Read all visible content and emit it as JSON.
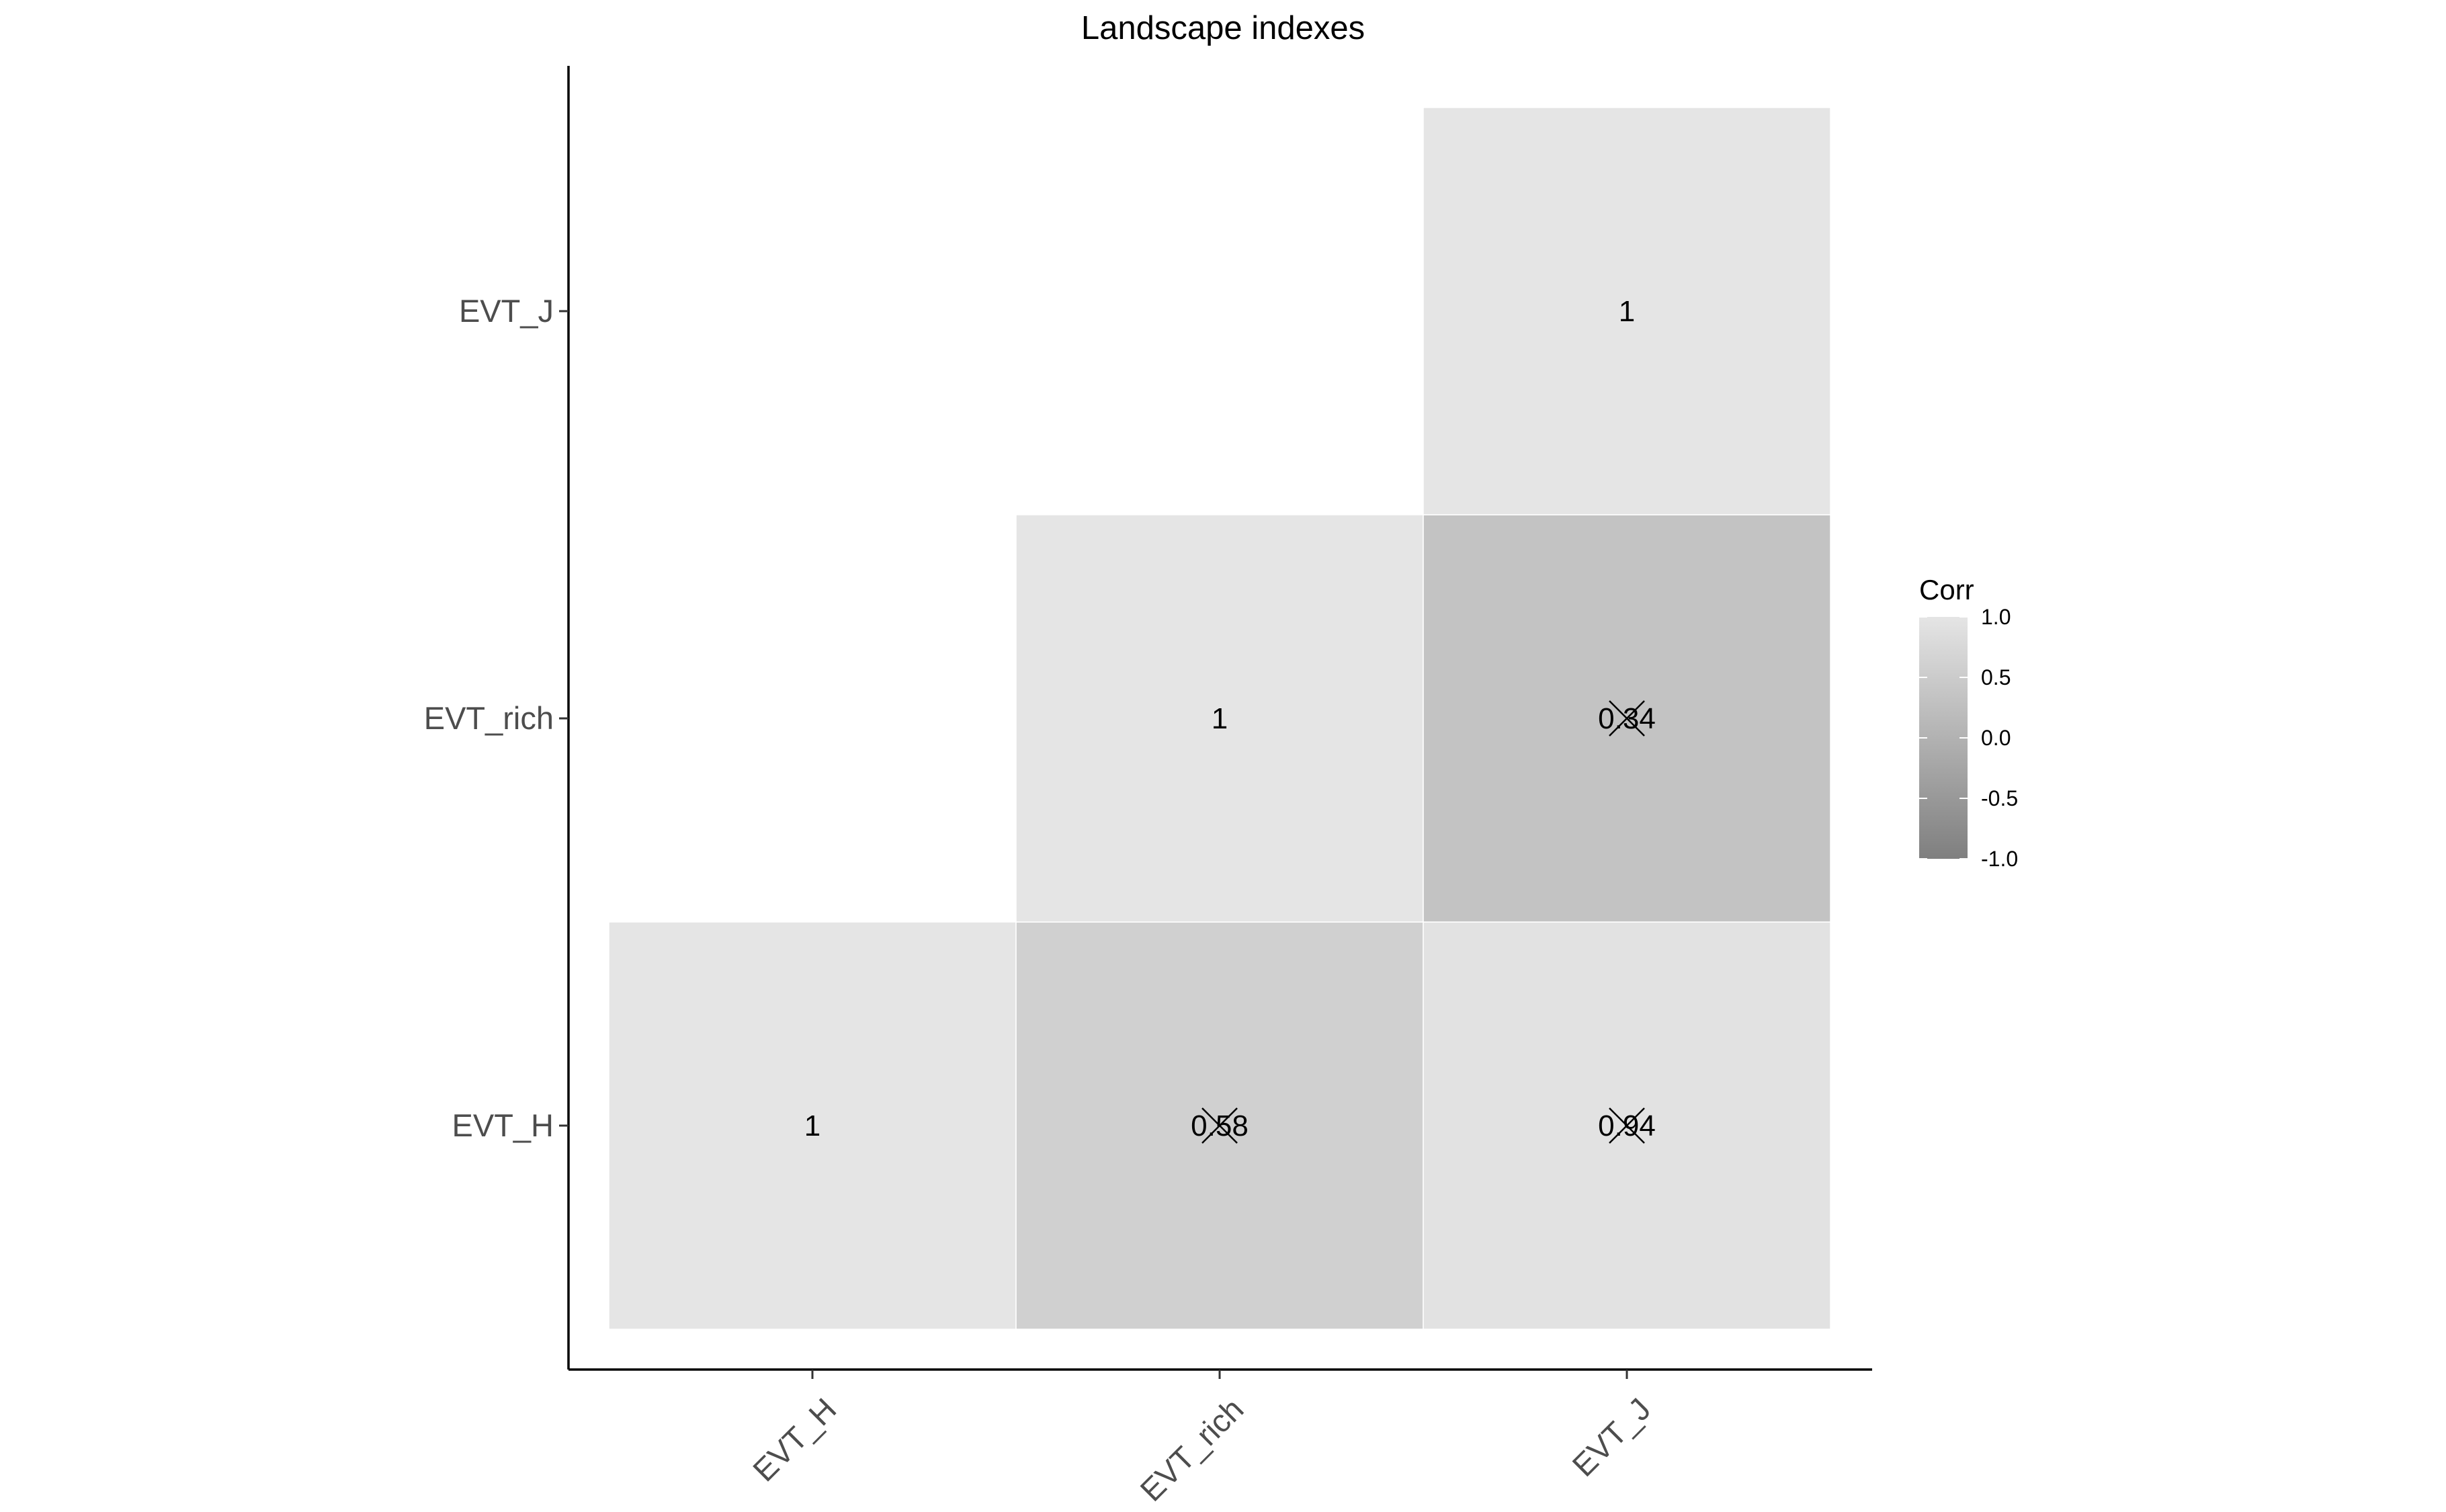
{
  "chart_data": {
    "type": "heatmap",
    "title": "Landscape indexes",
    "x_categories": [
      "EVT_H",
      "EVT_rich",
      "EVT_J"
    ],
    "y_categories": [
      "EVT_H",
      "EVT_rich",
      "EVT_J"
    ],
    "cells": [
      {
        "x": "EVT_H",
        "y": "EVT_H",
        "value": 1,
        "label": "1",
        "crossed": false
      },
      {
        "x": "EVT_rich",
        "y": "EVT_H",
        "value": 0.58,
        "label": "0.58",
        "crossed": true
      },
      {
        "x": "EVT_J",
        "y": "EVT_H",
        "value": 0.94,
        "label": "0.94",
        "crossed": true
      },
      {
        "x": "EVT_rich",
        "y": "EVT_rich",
        "value": 1,
        "label": "1",
        "crossed": false
      },
      {
        "x": "EVT_J",
        "y": "EVT_rich",
        "value": 0.34,
        "label": "0.34",
        "crossed": true
      },
      {
        "x": "EVT_J",
        "y": "EVT_J",
        "value": 1,
        "label": "1",
        "crossed": false
      }
    ],
    "legend": {
      "title": "Corr",
      "position": "right",
      "range": [
        -1.0,
        1.0
      ],
      "ticks": [
        "1.0",
        "0.5",
        "0.0",
        "-0.5",
        "-1.0"
      ],
      "tick_values": [
        1.0,
        0.5,
        0.0,
        -0.5,
        -1.0
      ],
      "color_low": "#7f7f7f",
      "color_high": "#e5e5e5"
    },
    "grid": false
  }
}
